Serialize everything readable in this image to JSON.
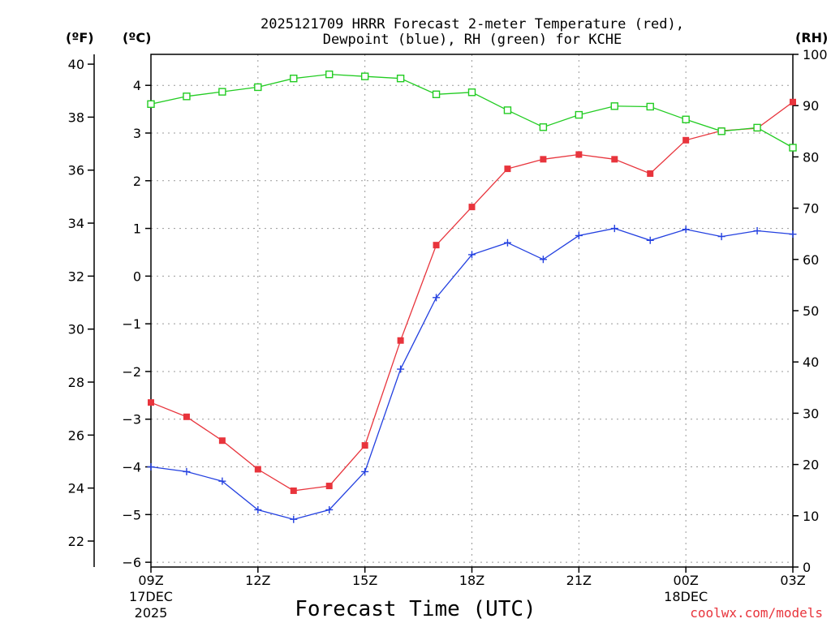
{
  "chart_data": {
    "type": "line",
    "title_line1": "2025121709 HRRR Forecast 2-meter Temperature (red),",
    "title_line2": "Dewpoint (blue), RH (green) for KCHE",
    "xlabel": "Forecast Time (UTC)",
    "credit": "coolwx.com/models",
    "units": {
      "fahrenheit": "(ºF)",
      "celsius": "(ºC)",
      "rh": "(RH)"
    },
    "x": [
      0,
      1,
      2,
      3,
      4,
      5,
      6,
      7,
      8,
      9,
      10,
      11,
      12,
      13,
      14,
      15,
      16,
      17,
      18
    ],
    "x_ticks": [
      {
        "pos": 0,
        "l1": "09Z",
        "l2": "17DEC",
        "l3": "2025"
      },
      {
        "pos": 3,
        "l1": "12Z",
        "l2": "",
        "l3": ""
      },
      {
        "pos": 6,
        "l1": "15Z",
        "l2": "",
        "l3": ""
      },
      {
        "pos": 9,
        "l1": "18Z",
        "l2": "",
        "l3": ""
      },
      {
        "pos": 12,
        "l1": "21Z",
        "l2": "",
        "l3": ""
      },
      {
        "pos": 15,
        "l1": "00Z",
        "l2": "18DEC",
        "l3": ""
      },
      {
        "pos": 18,
        "l1": "03Z",
        "l2": "",
        "l3": ""
      }
    ],
    "xlim": [
      0,
      18
    ],
    "celsius_ylim": [
      -6.1,
      4.65
    ],
    "celsius_ticks": [
      "-6",
      "-5",
      "-4",
      "-3",
      "-2",
      "-1",
      "0",
      "1",
      "2",
      "3",
      "4"
    ],
    "fahrenheit_ticks": [
      "22",
      "24",
      "26",
      "28",
      "30",
      "32",
      "34",
      "36",
      "38",
      "40"
    ],
    "rh_ylim": [
      0,
      100
    ],
    "rh_ticks": [
      "0",
      "10",
      "20",
      "30",
      "40",
      "50",
      "60",
      "70",
      "80",
      "90",
      "100"
    ],
    "series": [
      {
        "name": "Temperature",
        "unit": "C",
        "color": "#e8343c",
        "marker": "filled-square",
        "values": [
          -2.65,
          -2.95,
          -3.45,
          -4.05,
          -4.5,
          -4.4,
          -3.55,
          -1.35,
          0.65,
          1.45,
          2.25,
          2.45,
          2.55,
          2.45,
          2.15,
          2.85,
          3.05,
          3.1,
          3.65
        ]
      },
      {
        "name": "Dewpoint",
        "unit": "C",
        "color": "#2340e0",
        "marker": "plus",
        "values": [
          -4.0,
          -4.1,
          -4.3,
          -4.9,
          -5.1,
          -4.9,
          -4.1,
          -1.95,
          -0.45,
          0.45,
          0.7,
          0.35,
          0.85,
          1.0,
          0.75,
          0.98,
          0.83,
          0.95,
          0.88
        ]
      },
      {
        "name": "RH",
        "unit": "%",
        "color": "#22cc22",
        "marker": "open-square",
        "values": [
          90.3,
          91.8,
          92.7,
          93.6,
          95.3,
          96.1,
          95.7,
          95.3,
          92.2,
          92.6,
          89.1,
          85.8,
          88.2,
          89.9,
          89.8,
          87.3,
          85.0,
          85.7,
          81.8
        ]
      }
    ]
  }
}
